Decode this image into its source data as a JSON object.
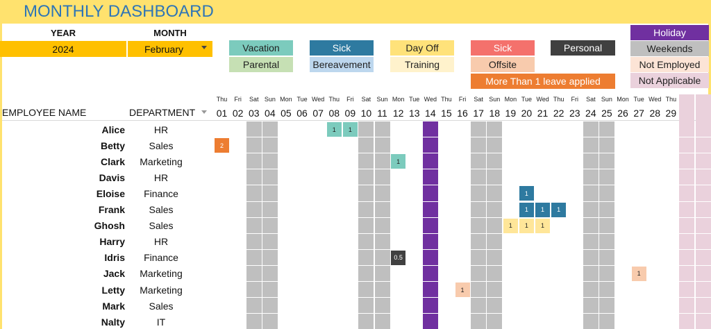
{
  "header": {
    "title": "MONTHLY DASHBOARD"
  },
  "selectors": {
    "year_label": "YEAR",
    "month_label": "MONTH",
    "year": "2024",
    "month": "February"
  },
  "legend": [
    {
      "label": "Vacation",
      "color": "#7ccbbd",
      "text_color": "#1f1f1f"
    },
    {
      "label": "Parental",
      "color": "#c6e0b4",
      "text_color": "#1f1f1f"
    },
    {
      "label": "Sick",
      "color": "#2e7aa0",
      "text_color": "#ffffff"
    },
    {
      "label": "Bereavement",
      "color": "#bdd7ee",
      "text_color": "#1f1f1f"
    },
    {
      "label": "Day Off",
      "color": "#ffe27a",
      "text_color": "#1f1f1f"
    },
    {
      "label": "Training",
      "color": "#fff2cc",
      "text_color": "#1f1f1f"
    },
    {
      "label": "Sick",
      "color": "#f4716c",
      "text_color": "#ffffff"
    },
    {
      "label": "Offsite",
      "color": "#f8cbad",
      "text_color": "#1f1f1f"
    },
    {
      "label": "Personal",
      "color": "#404040",
      "text_color": "#ffffff"
    },
    {
      "label": "More Than 1 leave applied",
      "color": "#ed7d31",
      "text_color": "#ffffff"
    },
    {
      "label": "Holiday",
      "color": "#7030a0",
      "text_color": "#ffffff"
    },
    {
      "label": "Weekends",
      "color": "#bfbfbf",
      "text_color": "#1f1f1f"
    },
    {
      "label": "Not Employed",
      "color": "#fce4d6",
      "text_color": "#1f1f1f"
    },
    {
      "label": "Not Applicable",
      "color": "#ead1dc",
      "text_color": "#1f1f1f"
    }
  ],
  "table": {
    "columns": {
      "name": "EMPLOYEE NAME",
      "department": "DEPARTMENT"
    },
    "days": [
      {
        "weekday": "Thu",
        "day": "01"
      },
      {
        "weekday": "Fri",
        "day": "02"
      },
      {
        "weekday": "Sat",
        "day": "03",
        "fill": "#bfbfbf"
      },
      {
        "weekday": "Sun",
        "day": "04",
        "fill": "#bfbfbf"
      },
      {
        "weekday": "Mon",
        "day": "05"
      },
      {
        "weekday": "Tue",
        "day": "06"
      },
      {
        "weekday": "Wed",
        "day": "07"
      },
      {
        "weekday": "Thu",
        "day": "08"
      },
      {
        "weekday": "Fri",
        "day": "09"
      },
      {
        "weekday": "Sat",
        "day": "10",
        "fill": "#bfbfbf"
      },
      {
        "weekday": "Sun",
        "day": "11",
        "fill": "#bfbfbf"
      },
      {
        "weekday": "Mon",
        "day": "12"
      },
      {
        "weekday": "Tue",
        "day": "13"
      },
      {
        "weekday": "Wed",
        "day": "14",
        "fill": "#7030a0"
      },
      {
        "weekday": "Thu",
        "day": "15"
      },
      {
        "weekday": "Fri",
        "day": "16"
      },
      {
        "weekday": "Sat",
        "day": "17",
        "fill": "#bfbfbf"
      },
      {
        "weekday": "Sun",
        "day": "18",
        "fill": "#bfbfbf"
      },
      {
        "weekday": "Mon",
        "day": "19"
      },
      {
        "weekday": "Tue",
        "day": "20"
      },
      {
        "weekday": "Wed",
        "day": "21"
      },
      {
        "weekday": "Thu",
        "day": "22"
      },
      {
        "weekday": "Fri",
        "day": "23"
      },
      {
        "weekday": "Sat",
        "day": "24",
        "fill": "#bfbfbf"
      },
      {
        "weekday": "Sun",
        "day": "25",
        "fill": "#bfbfbf"
      },
      {
        "weekday": "Mon",
        "day": "26"
      },
      {
        "weekday": "Tue",
        "day": "27"
      },
      {
        "weekday": "Wed",
        "day": "28"
      },
      {
        "weekday": "Thu",
        "day": "29"
      },
      {
        "weekday": null,
        "day": null,
        "fill": "#ead1dc"
      },
      {
        "weekday": null,
        "day": null,
        "fill": "#ead1dc"
      }
    ],
    "rows": [
      {
        "name": "Alice",
        "department": "HR",
        "leaves": [
          {
            "day": "08",
            "value": 1,
            "color": "#7ccbbd",
            "text_color": "#1f1f1f"
          },
          {
            "day": "09",
            "value": 1,
            "color": "#7ccbbd",
            "text_color": "#1f1f1f"
          }
        ]
      },
      {
        "name": "Betty",
        "department": "Sales",
        "leaves": [
          {
            "day": "01",
            "value": 2,
            "color": "#ed7d31",
            "text_color": "#ffffff"
          }
        ]
      },
      {
        "name": "Clark",
        "department": "Marketing",
        "leaves": [
          {
            "day": "12",
            "value": 1,
            "color": "#7ccbbd",
            "text_color": "#1f1f1f"
          }
        ]
      },
      {
        "name": "Davis",
        "department": "HR",
        "leaves": []
      },
      {
        "name": "Eloise",
        "department": "Finance",
        "leaves": [
          {
            "day": "20",
            "value": 1,
            "color": "#2e7aa0",
            "text_color": "#ffffff"
          }
        ]
      },
      {
        "name": "Frank",
        "department": "Sales",
        "leaves": [
          {
            "day": "20",
            "value": 1,
            "color": "#2e7aa0",
            "text_color": "#ffffff"
          },
          {
            "day": "21",
            "value": 1,
            "color": "#2e7aa0",
            "text_color": "#ffffff"
          },
          {
            "day": "22",
            "value": 1,
            "color": "#2e7aa0",
            "text_color": "#ffffff"
          }
        ]
      },
      {
        "name": "Ghosh",
        "department": "Sales",
        "leaves": [
          {
            "day": "19",
            "value": 1,
            "color": "#ffe699",
            "text_color": "#1f1f1f"
          },
          {
            "day": "20",
            "value": 1,
            "color": "#ffe699",
            "text_color": "#1f1f1f"
          },
          {
            "day": "21",
            "value": 1,
            "color": "#ffe699",
            "text_color": "#1f1f1f"
          }
        ]
      },
      {
        "name": "Harry",
        "department": "HR",
        "leaves": []
      },
      {
        "name": "Idris",
        "department": "Finance",
        "leaves": [
          {
            "day": "12",
            "value": 0.5,
            "color": "#404040",
            "text_color": "#ffffff"
          }
        ]
      },
      {
        "name": "Jack",
        "department": "Marketing",
        "leaves": [
          {
            "day": "27",
            "value": 1,
            "color": "#f8cbad",
            "text_color": "#1f1f1f"
          }
        ]
      },
      {
        "name": "Letty",
        "department": "Marketing",
        "leaves": [
          {
            "day": "16",
            "value": 1,
            "color": "#f8cbad",
            "text_color": "#1f1f1f"
          }
        ]
      },
      {
        "name": "Mark",
        "department": "Sales",
        "leaves": []
      },
      {
        "name": "Nalty",
        "department": "IT",
        "leaves": []
      }
    ]
  }
}
